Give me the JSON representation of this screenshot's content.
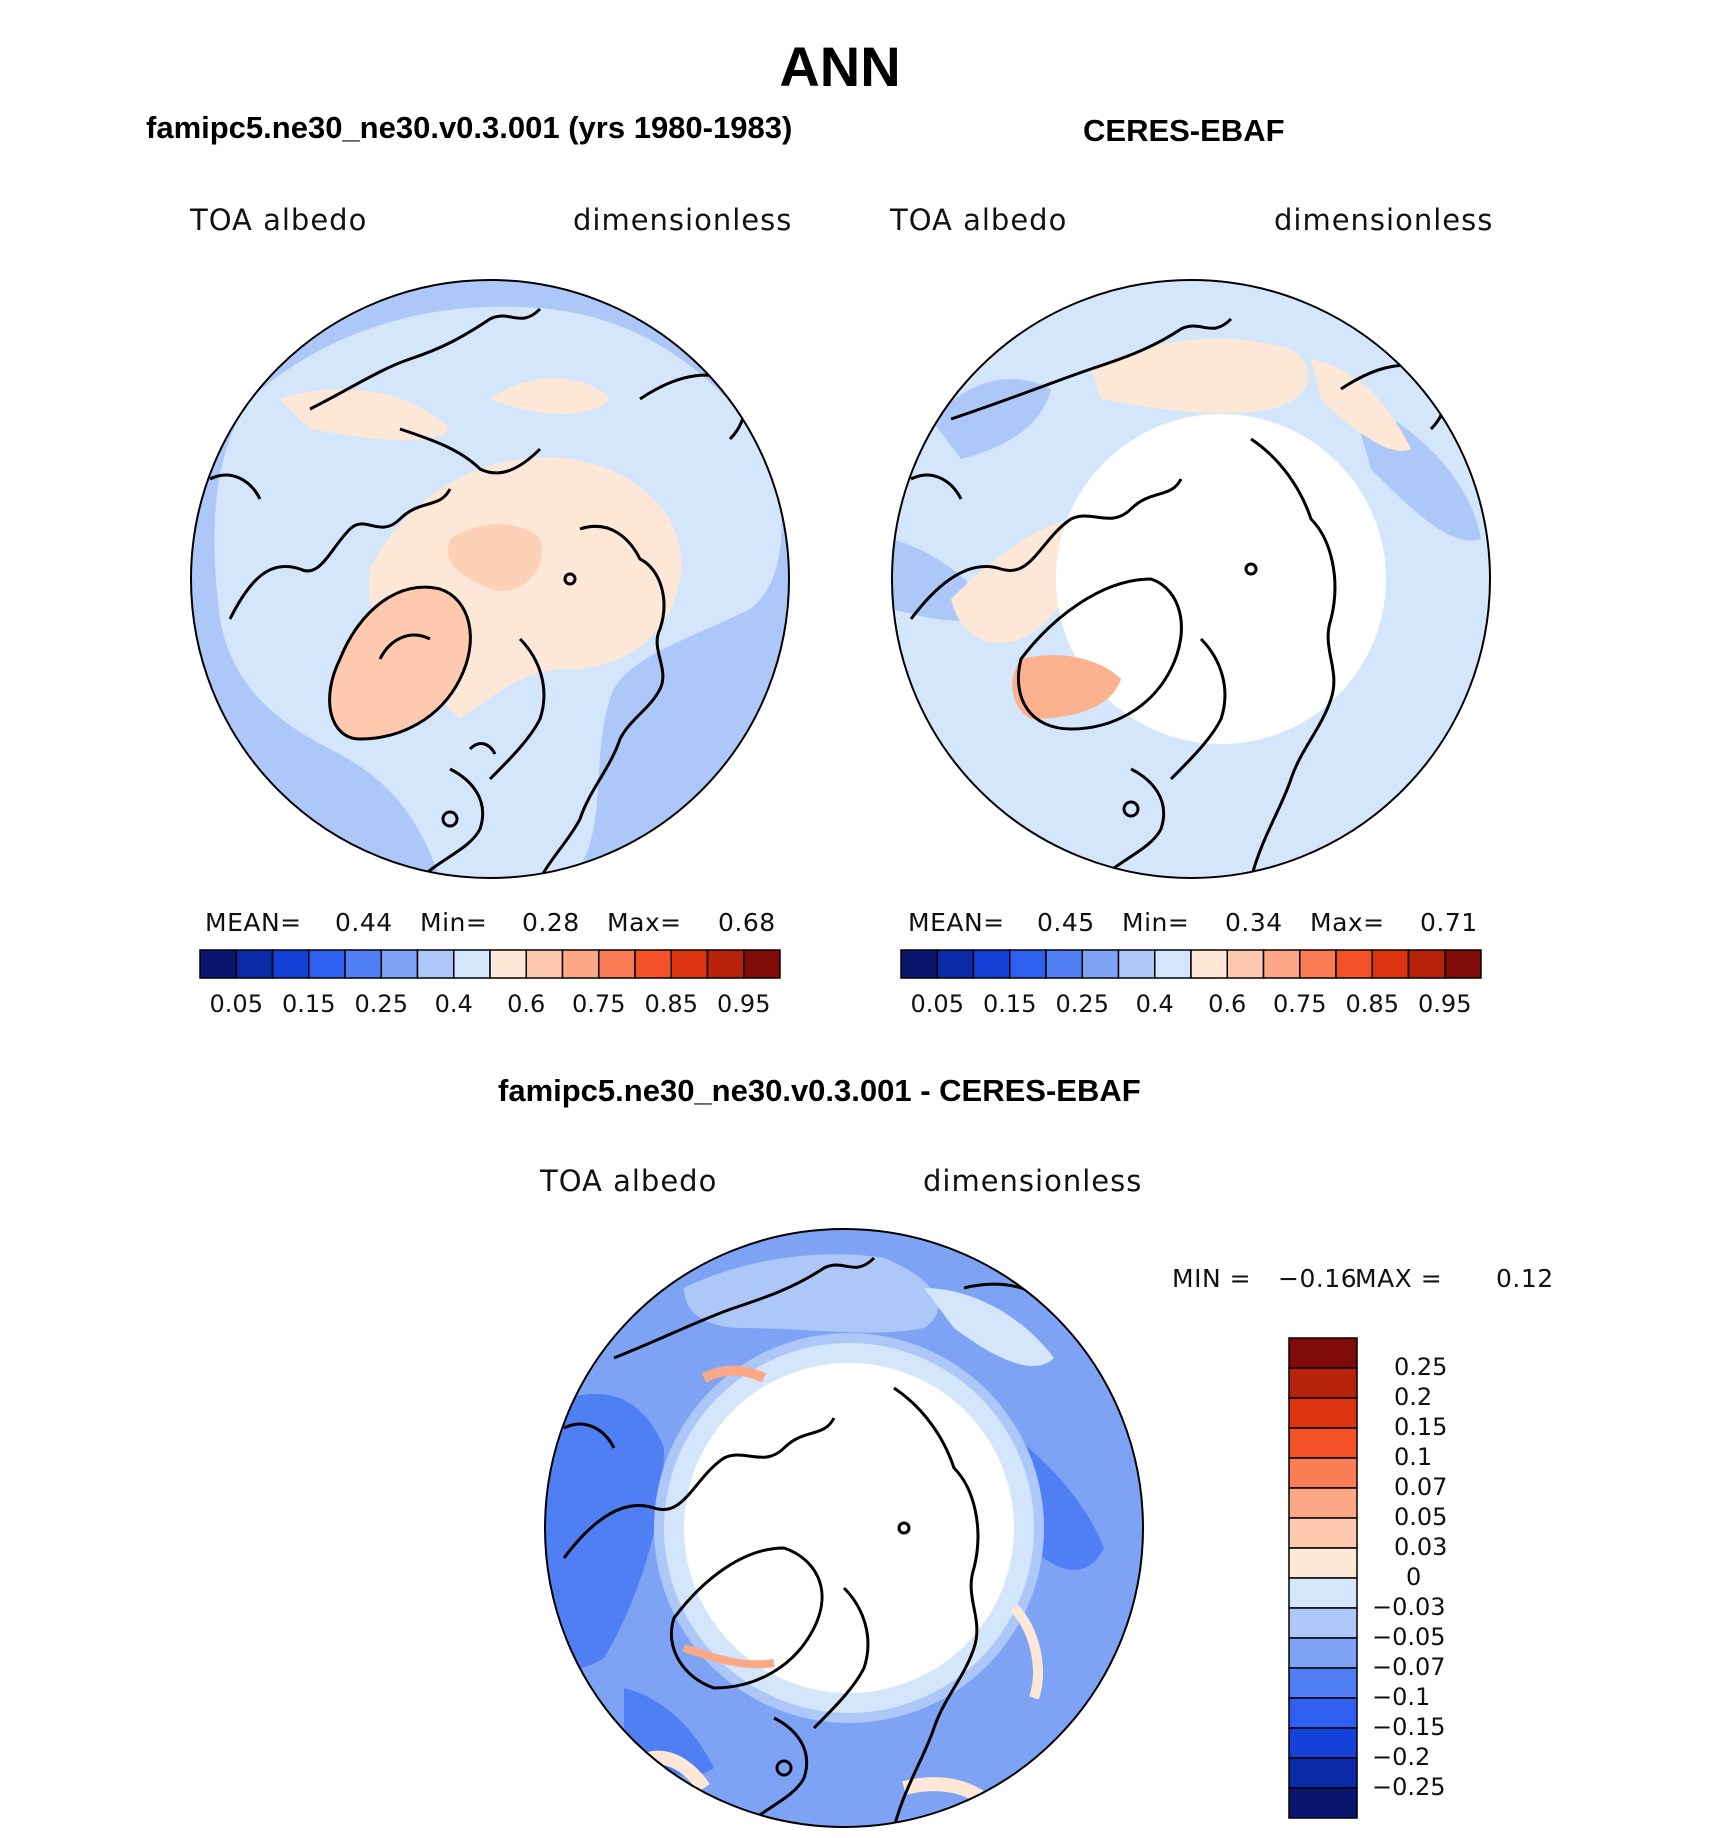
{
  "main_title": "ANN",
  "panels": [
    {
      "id": "model",
      "subtitle": "famipc5.ne30_ne30.v0.3.001 (yrs 1980-1983)",
      "var_label": "TOA albedo",
      "units": "dimensionless",
      "mean_label": "MEAN=",
      "mean_value": "0.44",
      "min_label": "Min=",
      "min_value": "0.28",
      "max_label": "Max=",
      "max_value": "0.68"
    },
    {
      "id": "obs",
      "subtitle": "CERES-EBAF",
      "var_label": "TOA albedo",
      "units": "dimensionless",
      "mean_label": "MEAN=",
      "mean_value": "0.45",
      "min_label": "Min=",
      "min_value": "0.34",
      "max_label": "Max=",
      "max_value": "0.71"
    },
    {
      "id": "diff",
      "subtitle": "famipc5.ne30_ne30.v0.3.001 - CERES-EBAF",
      "var_label": "TOA albedo",
      "units": "dimensionless",
      "min_label": "MIN =",
      "min_value": "−0.16",
      "max_label": "MAX =",
      "max_value": "0.12"
    }
  ],
  "horizontal_colorbar": {
    "colors": [
      "#08166e",
      "#0b2aa8",
      "#1442d8",
      "#2f5ff0",
      "#4f7ff3",
      "#7ea3f5",
      "#adc8f8",
      "#d3e6fb",
      "#fde8d8",
      "#fdcab0",
      "#fca887",
      "#fb7d55",
      "#f35127",
      "#dc3410",
      "#b8220b",
      "#7f0a07"
    ],
    "tick_labels": [
      "0.05",
      "0.15",
      "0.25",
      "0.4",
      "0.6",
      "0.75",
      "0.85",
      "0.95"
    ]
  },
  "vertical_colorbar": {
    "colors": [
      "#7f0a07",
      "#b8220b",
      "#dc3410",
      "#f35127",
      "#fb7d55",
      "#fca887",
      "#fdcab0",
      "#fde8d8",
      "#d3e6fb",
      "#adc8f8",
      "#7ea3f5",
      "#4f7ff3",
      "#2f5ff0",
      "#1442d8",
      "#0b2aa8",
      "#08166e"
    ],
    "tick_labels": [
      "0.25",
      "0.2",
      "0.15",
      "0.1",
      "0.07",
      "0.05",
      "0.03",
      "0",
      "−0.03",
      "−0.05",
      "−0.07",
      "−0.1",
      "−0.15",
      "−0.2",
      "−0.25"
    ]
  }
}
